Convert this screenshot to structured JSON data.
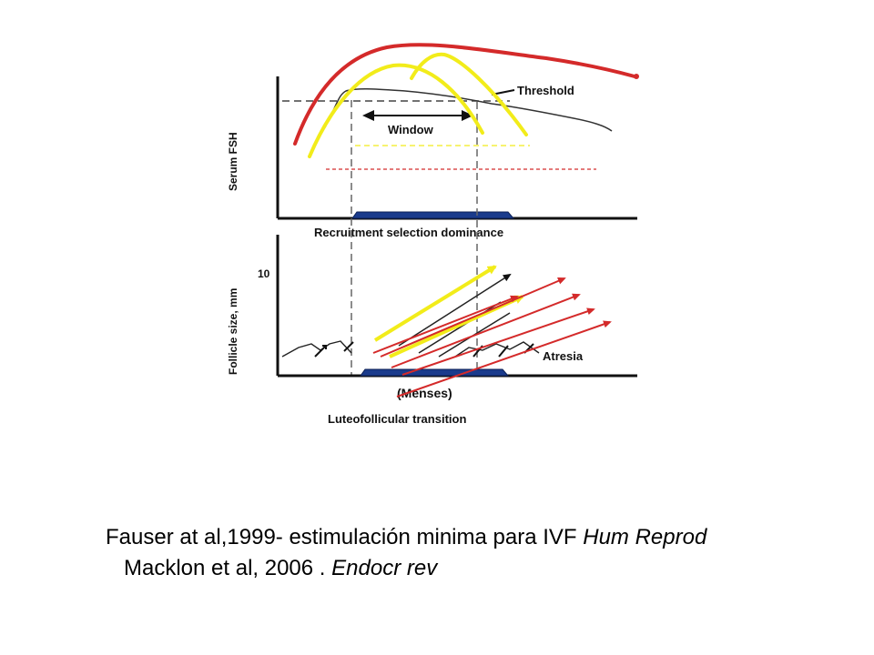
{
  "diagram": {
    "threshold_label": "Threshold",
    "window_label": "Window",
    "top_yaxis_label": "Serum FSH",
    "recruitment_label": "Recruitment selection dominance",
    "bottom_yaxis_label": "Follicle size, mm",
    "y_tick": "10",
    "atresia_label": "Atresia",
    "menses_label": "(Menses)",
    "bottom_xaxis_label": "Luteofollicular transition"
  },
  "colors": {
    "red_annotation": "#d42a2a",
    "yellow_annotation": "#f2ec1a",
    "menses_bar": "#1a3b8c"
  },
  "caption": {
    "line1_text": "Fauser at al,1999- estimulación minima para  IVF ",
    "line1_journal": "Hum Reprod",
    "line2_text": "Macklon et al, 2006 . ",
    "line2_journal": "Endocr rev"
  }
}
